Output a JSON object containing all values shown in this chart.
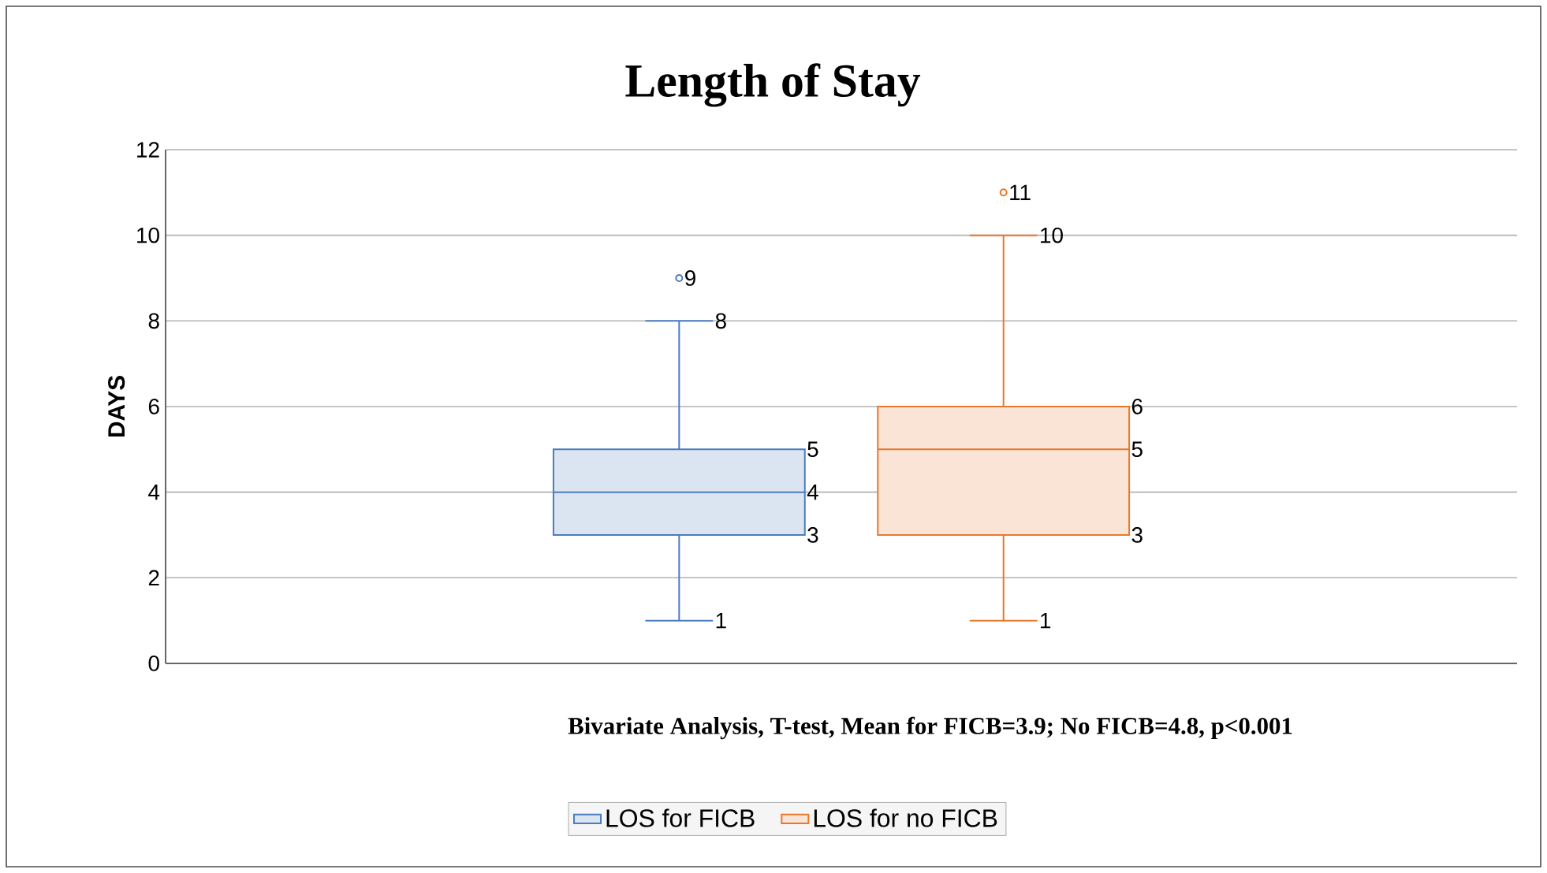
{
  "chart_data": {
    "type": "box",
    "title": "Length of Stay",
    "ylabel": "DAYS",
    "annotations": [
      "Bivariate Analysis, T-test, Mean for FICB=3.9; No FICB=4.8, p<0.001",
      "1",
      "3",
      "4",
      "5",
      "8",
      "9",
      "1",
      "3",
      "5",
      "6",
      "10",
      "11"
    ],
    "categories": [
      null
    ],
    "series": [
      {
        "name": "LOS for FICB",
        "color": "#4a7cc0",
        "boxes": [
          {
            "low": 1,
            "q1": 3,
            "median": 4,
            "q3": 5,
            "high": 8,
            "outliers": [
              9
            ]
          }
        ]
      },
      {
        "name": "LOS for no FICB",
        "color": "#e8782c",
        "boxes": [
          {
            "low": 1,
            "q1": 3,
            "median": 5,
            "q3": 6,
            "high": 10,
            "outliers": [
              11
            ]
          }
        ]
      }
    ],
    "ylim": [
      0,
      12
    ],
    "yticks": [
      0,
      2,
      4,
      6,
      8,
      10,
      12
    ],
    "grid": "y",
    "legend": "bottom"
  }
}
